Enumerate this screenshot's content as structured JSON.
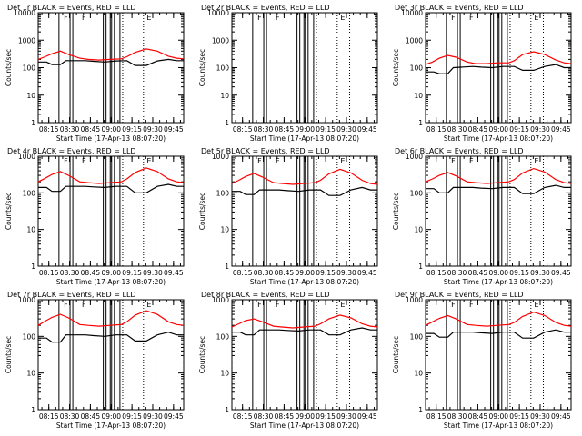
{
  "chart_data": [
    {
      "type": "line",
      "title": "Det 1r  BLACK = Events, RED = LLD",
      "xlabel": "Start Time (17-Apr-13 08:07:20)",
      "ylabel": "Counts/sec",
      "ylim": [
        1,
        10000
      ],
      "yscale": "log",
      "yticks": [
        "1",
        "10",
        "100",
        "1000",
        "10000"
      ],
      "xticks": [
        "08:15",
        "08:30",
        "08:45",
        "09:00",
        "09:15",
        "09:30",
        "09:45"
      ],
      "xrange_min": [
        0,
        105
      ],
      "grid": false,
      "legend": "none",
      "series": [
        {
          "color": "#000000",
          "x": [
            0,
            6,
            10,
            16,
            20,
            34,
            40,
            48,
            56,
            64,
            70,
            78,
            86,
            94,
            100,
            105
          ],
          "y": [
            160,
            160,
            130,
            130,
            180,
            180,
            170,
            160,
            175,
            180,
            120,
            120,
            175,
            200,
            180,
            180
          ]
        },
        {
          "color": "#ff0000",
          "x": [
            0,
            5,
            10,
            16,
            22,
            30,
            36,
            44,
            52,
            60,
            64,
            70,
            78,
            86,
            94,
            100,
            105
          ],
          "y": [
            200,
            250,
            320,
            400,
            300,
            220,
            200,
            190,
            200,
            210,
            250,
            360,
            480,
            400,
            260,
            220,
            210
          ]
        }
      ],
      "vlines_solid": [
        15,
        23,
        25,
        47,
        49,
        52,
        53,
        55,
        59
      ],
      "vlines_dotted": [
        61,
        76,
        85
      ],
      "markers": [
        {
          "x": 20,
          "text": "F"
        },
        {
          "x": 33,
          "text": "F"
        },
        {
          "x": 80,
          "text": "E"
        }
      ]
    },
    {
      "type": "line",
      "title": "Det 2r  BLACK = Events, RED = LLD",
      "xlabel": "Start Time (17-Apr-13 08:07:20)",
      "ylabel": "Counts/sec",
      "ylim": [
        1,
        10000
      ],
      "yscale": "log",
      "yticks": [
        "1",
        "10",
        "100",
        "1000",
        "10000"
      ],
      "xticks": [
        "08:15",
        "08:30",
        "08:45",
        "09:00",
        "09:15",
        "09:30",
        "09:45"
      ],
      "xrange_min": [
        0,
        105
      ],
      "grid": false,
      "legend": "none",
      "series": [],
      "vlines_solid": [
        15,
        23,
        25,
        47,
        49,
        52,
        53,
        55,
        59
      ],
      "vlines_dotted": [
        61,
        76,
        85
      ],
      "markers": [
        {
          "x": 20,
          "text": "F"
        },
        {
          "x": 33,
          "text": "F"
        },
        {
          "x": 80,
          "text": "E"
        }
      ]
    },
    {
      "type": "line",
      "title": "Det 3r  BLACK = Events, RED = LLD",
      "xlabel": "Start Time (17-Apr-13 08:07:20)",
      "ylabel": "Counts/sec",
      "ylim": [
        1,
        10000
      ],
      "yscale": "log",
      "yticks": [
        "1",
        "10",
        "100",
        "1000",
        "10000"
      ],
      "xticks": [
        "08:15",
        "08:30",
        "08:45",
        "09:00",
        "09:15",
        "09:30",
        "09:45"
      ],
      "xrange_min": [
        0,
        105
      ],
      "grid": false,
      "legend": "none",
      "series": [
        {
          "color": "#000000",
          "x": [
            0,
            6,
            10,
            16,
            20,
            34,
            40,
            48,
            56,
            64,
            70,
            78,
            86,
            94,
            100,
            105
          ],
          "y": [
            70,
            70,
            60,
            60,
            100,
            110,
            105,
            100,
            110,
            110,
            80,
            80,
            110,
            130,
            100,
            100
          ]
        },
        {
          "color": "#ff0000",
          "x": [
            0,
            5,
            10,
            16,
            22,
            30,
            36,
            44,
            52,
            60,
            64,
            70,
            78,
            86,
            94,
            100,
            105
          ],
          "y": [
            130,
            160,
            220,
            280,
            240,
            160,
            140,
            140,
            150,
            150,
            180,
            300,
            380,
            300,
            190,
            150,
            140
          ]
        }
      ],
      "vlines_solid": [
        15,
        23,
        25,
        47,
        49,
        52,
        53,
        55,
        59
      ],
      "vlines_dotted": [
        61,
        76,
        85
      ],
      "markers": [
        {
          "x": 20,
          "text": "F"
        },
        {
          "x": 33,
          "text": "F"
        },
        {
          "x": 80,
          "text": "E"
        }
      ]
    },
    {
      "type": "line",
      "title": "Det 4r  BLACK = Events, RED = LLD",
      "xlabel": "Start Time (17-Apr-13 08:07:20)",
      "ylabel": "Counts/sec",
      "ylim": [
        1,
        1000
      ],
      "yscale": "log",
      "yticks": [
        "1",
        "10",
        "100",
        "1000"
      ],
      "xticks": [
        "08:15",
        "08:30",
        "08:45",
        "09:00",
        "09:15",
        "09:30",
        "09:45"
      ],
      "xrange_min": [
        0,
        105
      ],
      "grid": false,
      "legend": "none",
      "series": [
        {
          "color": "#000000",
          "x": [
            0,
            6,
            10,
            16,
            20,
            34,
            40,
            48,
            56,
            64,
            70,
            78,
            86,
            94,
            100,
            105
          ],
          "y": [
            140,
            140,
            110,
            110,
            150,
            150,
            145,
            140,
            150,
            150,
            100,
            100,
            150,
            170,
            150,
            150
          ]
        },
        {
          "color": "#ff0000",
          "x": [
            0,
            5,
            10,
            16,
            22,
            30,
            36,
            44,
            52,
            60,
            64,
            70,
            78,
            86,
            94,
            100,
            105
          ],
          "y": [
            200,
            250,
            320,
            380,
            300,
            200,
            190,
            180,
            190,
            200,
            240,
            360,
            480,
            380,
            240,
            200,
            190
          ]
        }
      ],
      "vlines_solid": [
        15,
        23,
        25,
        47,
        49,
        52,
        53,
        55,
        59
      ],
      "vlines_dotted": [
        61,
        76,
        85
      ],
      "markers": [
        {
          "x": 20,
          "text": "F"
        },
        {
          "x": 33,
          "text": "F"
        },
        {
          "x": 80,
          "text": "E"
        }
      ]
    },
    {
      "type": "line",
      "title": "Det 5r  BLACK = Events, RED = LLD",
      "xlabel": "Start Time (17-Apr-13 08:07:20)",
      "ylabel": "Counts/sec",
      "ylim": [
        1,
        1000
      ],
      "yscale": "log",
      "yticks": [
        "1",
        "10",
        "100",
        "1000"
      ],
      "xticks": [
        "08:15",
        "08:30",
        "08:45",
        "09:00",
        "09:15",
        "09:30",
        "09:45"
      ],
      "xrange_min": [
        0,
        105
      ],
      "grid": false,
      "legend": "none",
      "series": [
        {
          "color": "#000000",
          "x": [
            0,
            6,
            10,
            16,
            20,
            34,
            40,
            48,
            56,
            64,
            70,
            78,
            86,
            94,
            100,
            105
          ],
          "y": [
            110,
            110,
            90,
            90,
            120,
            120,
            115,
            110,
            120,
            120,
            85,
            85,
            120,
            140,
            120,
            120
          ]
        },
        {
          "color": "#ff0000",
          "x": [
            0,
            5,
            10,
            16,
            22,
            30,
            36,
            44,
            52,
            60,
            64,
            70,
            78,
            86,
            94,
            100,
            105
          ],
          "y": [
            180,
            220,
            280,
            340,
            270,
            190,
            180,
            170,
            180,
            190,
            220,
            330,
            440,
            350,
            220,
            180,
            170
          ]
        }
      ],
      "vlines_solid": [
        15,
        23,
        25,
        47,
        49,
        52,
        53,
        55,
        59
      ],
      "vlines_dotted": [
        61,
        76,
        85
      ],
      "markers": [
        {
          "x": 20,
          "text": "F"
        },
        {
          "x": 33,
          "text": "F"
        },
        {
          "x": 80,
          "text": "E"
        }
      ]
    },
    {
      "type": "line",
      "title": "Det 6r  BLACK = Events, RED = LLD",
      "xlabel": "Start Time (17-Apr-13 08:07:20)",
      "ylabel": "Counts/sec",
      "ylim": [
        1,
        1000
      ],
      "yscale": "log",
      "yticks": [
        "1",
        "10",
        "100",
        "1000"
      ],
      "xticks": [
        "08:15",
        "08:30",
        "08:45",
        "09:00",
        "09:15",
        "09:30",
        "09:45"
      ],
      "xrange_min": [
        0,
        105
      ],
      "grid": false,
      "legend": "none",
      "series": [
        {
          "color": "#000000",
          "x": [
            0,
            6,
            10,
            16,
            20,
            34,
            40,
            48,
            56,
            64,
            70,
            78,
            86,
            94,
            100,
            105
          ],
          "y": [
            130,
            130,
            100,
            100,
            140,
            140,
            135,
            130,
            140,
            140,
            95,
            95,
            140,
            160,
            140,
            140
          ]
        },
        {
          "color": "#ff0000",
          "x": [
            0,
            5,
            10,
            16,
            22,
            30,
            36,
            44,
            52,
            60,
            64,
            70,
            78,
            86,
            94,
            100,
            105
          ],
          "y": [
            200,
            240,
            300,
            360,
            290,
            200,
            190,
            180,
            190,
            200,
            230,
            350,
            460,
            370,
            230,
            190,
            180
          ]
        }
      ],
      "vlines_solid": [
        15,
        23,
        25,
        47,
        49,
        52,
        53,
        55,
        59
      ],
      "vlines_dotted": [
        61,
        76,
        85
      ],
      "markers": [
        {
          "x": 20,
          "text": "F"
        },
        {
          "x": 33,
          "text": "F"
        },
        {
          "x": 80,
          "text": "E"
        }
      ]
    },
    {
      "type": "line",
      "title": "Det 7r  BLACK = Events, RED = LLD",
      "xlabel": "Start Time (17-Apr-13 08:07:20)",
      "ylabel": "Counts/sec",
      "ylim": [
        1,
        1000
      ],
      "yscale": "log",
      "yticks": [
        "1",
        "10",
        "100",
        "1000"
      ],
      "xticks": [
        "08:15",
        "08:30",
        "08:45",
        "09:00",
        "09:15",
        "09:30",
        "09:45"
      ],
      "xrange_min": [
        0,
        105
      ],
      "grid": false,
      "legend": "none",
      "series": [
        {
          "color": "#000000",
          "x": [
            0,
            6,
            10,
            16,
            20,
            34,
            40,
            48,
            56,
            64,
            70,
            78,
            86,
            94,
            100,
            105
          ],
          "y": [
            90,
            90,
            70,
            70,
            110,
            110,
            105,
            100,
            110,
            110,
            75,
            75,
            110,
            130,
            110,
            110
          ]
        },
        {
          "color": "#ff0000",
          "x": [
            0,
            5,
            10,
            16,
            22,
            30,
            36,
            44,
            52,
            60,
            64,
            70,
            78,
            86,
            94,
            100,
            105
          ],
          "y": [
            200,
            260,
            330,
            400,
            320,
            210,
            200,
            190,
            200,
            210,
            250,
            380,
            500,
            400,
            250,
            210,
            200
          ]
        }
      ],
      "vlines_solid": [
        15,
        23,
        25,
        47,
        49,
        52,
        53,
        55,
        59
      ],
      "vlines_dotted": [
        61,
        76,
        85
      ],
      "markers": [
        {
          "x": 20,
          "text": "F"
        },
        {
          "x": 33,
          "text": "F"
        },
        {
          "x": 80,
          "text": "E"
        }
      ]
    },
    {
      "type": "line",
      "title": "Det 8r  BLACK = Events, RED = LLD",
      "xlabel": "Start Time (17-Apr-13 08:07:20)",
      "ylabel": "Counts/sec",
      "ylim": [
        1,
        1000
      ],
      "yscale": "log",
      "yticks": [
        "1",
        "10",
        "100",
        "1000"
      ],
      "xticks": [
        "08:15",
        "08:30",
        "08:45",
        "09:00",
        "09:15",
        "09:30",
        "09:45"
      ],
      "xrange_min": [
        0,
        105
      ],
      "grid": false,
      "legend": "none",
      "series": [
        {
          "color": "#000000",
          "x": [
            0,
            6,
            10,
            16,
            20,
            34,
            40,
            48,
            56,
            64,
            70,
            78,
            86,
            94,
            100,
            105
          ],
          "y": [
            130,
            130,
            110,
            110,
            150,
            150,
            145,
            140,
            150,
            150,
            110,
            110,
            150,
            170,
            150,
            150
          ]
        },
        {
          "color": "#ff0000",
          "x": [
            0,
            5,
            10,
            16,
            22,
            30,
            36,
            44,
            52,
            60,
            64,
            70,
            78,
            86,
            94,
            100,
            105
          ],
          "y": [
            180,
            220,
            270,
            300,
            250,
            190,
            180,
            170,
            180,
            190,
            220,
            300,
            380,
            320,
            220,
            190,
            180
          ]
        }
      ],
      "vlines_solid": [
        15,
        23,
        25,
        47,
        49,
        52,
        53,
        55,
        59
      ],
      "vlines_dotted": [
        61,
        76,
        85
      ],
      "markers": [
        {
          "x": 20,
          "text": "F"
        },
        {
          "x": 33,
          "text": "F"
        },
        {
          "x": 80,
          "text": "E"
        }
      ]
    },
    {
      "type": "line",
      "title": "Det 9r  BLACK = Events, RED = LLD",
      "xlabel": "Start Time (17-Apr-13 08:07:20)",
      "ylabel": "Counts/sec",
      "ylim": [
        1,
        1000
      ],
      "yscale": "log",
      "yticks": [
        "1",
        "10",
        "100",
        "1000"
      ],
      "xticks": [
        "08:15",
        "08:30",
        "08:45",
        "09:00",
        "09:15",
        "09:30",
        "09:45"
      ],
      "xrange_min": [
        0,
        105
      ],
      "grid": false,
      "legend": "none",
      "series": [
        {
          "color": "#000000",
          "x": [
            0,
            6,
            10,
            16,
            20,
            34,
            40,
            48,
            56,
            64,
            70,
            78,
            86,
            94,
            100,
            105
          ],
          "y": [
            120,
            120,
            95,
            95,
            130,
            130,
            125,
            120,
            130,
            130,
            90,
            90,
            130,
            150,
            130,
            130
          ]
        },
        {
          "color": "#ff0000",
          "x": [
            0,
            5,
            10,
            16,
            22,
            30,
            36,
            44,
            52,
            60,
            64,
            70,
            78,
            86,
            94,
            100,
            105
          ],
          "y": [
            200,
            250,
            310,
            370,
            300,
            210,
            200,
            190,
            200,
            210,
            240,
            350,
            460,
            370,
            240,
            200,
            190
          ]
        }
      ],
      "vlines_solid": [
        15,
        23,
        25,
        47,
        49,
        52,
        53,
        55,
        59
      ],
      "vlines_dotted": [
        61,
        76,
        85
      ],
      "markers": [
        {
          "x": 20,
          "text": "F"
        },
        {
          "x": 33,
          "text": "F"
        },
        {
          "x": 80,
          "text": "E"
        }
      ]
    }
  ]
}
